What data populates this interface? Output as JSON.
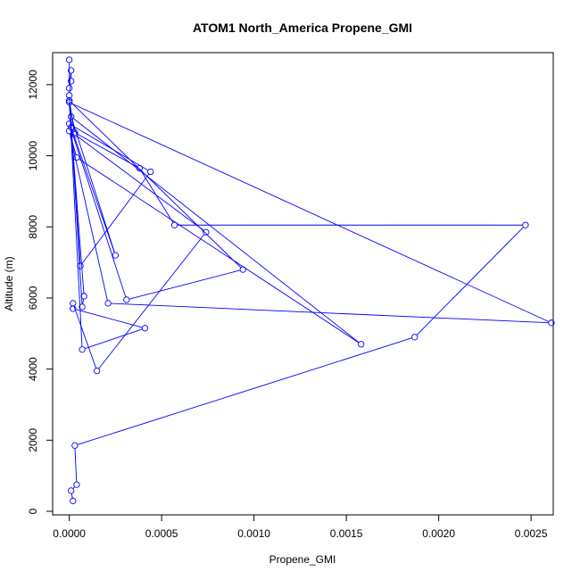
{
  "chart_data": {
    "type": "line",
    "title": "ATOM1 North_America Propene_GMI",
    "xlabel": "Propene_GMI",
    "ylabel": "Altitude (m)",
    "xlim": [
      -9e-05,
      0.00262
    ],
    "ylim": [
      -100,
      12900
    ],
    "xticks": [
      0,
      0.0005,
      0.001,
      0.0015,
      0.002,
      0.0025
    ],
    "xtick_labels": [
      "0.0000",
      "0.0005",
      "0.0010",
      "0.0015",
      "0.0020",
      "0.0025"
    ],
    "yticks": [
      0,
      2000,
      4000,
      6000,
      8000,
      10000,
      12000
    ],
    "ytick_labels": [
      "0",
      "2000",
      "4000",
      "6000",
      "8000",
      "10000",
      "12000"
    ],
    "grid": false,
    "series": [
      {
        "color": "#0000ff",
        "marker": "open-circle",
        "x": [
          2e-05,
          1e-05,
          4e-05,
          3e-05,
          0.00187,
          0.00247,
          0.00057,
          0.00038,
          3e-05,
          0.0,
          7e-05,
          0.00041,
          2e-05,
          2e-05,
          0.00015,
          0.00074,
          3e-05,
          0.0,
          0.00094,
          0.00031,
          0.0,
          0.00044,
          6e-05,
          1e-05,
          0.00025,
          1e-05,
          0.00158,
          4e-05,
          0.0,
          0.00021,
          0.00261,
          0.0,
          8e-05,
          7e-05,
          0.0,
          1e-05,
          1e-05,
          0.0,
          0.0
        ],
        "y": [
          290,
          580,
          750,
          1850,
          4900,
          8050,
          8050,
          9650,
          10650,
          11550,
          4550,
          5150,
          5700,
          5850,
          3950,
          7850,
          10600,
          11550,
          6800,
          5950,
          10900,
          9550,
          6900,
          10800,
          7200,
          11100,
          4700,
          9950,
          10700,
          5850,
          5300,
          11500,
          6050,
          5750,
          11700,
          12100,
          12400,
          11900,
          12700
        ]
      }
    ]
  }
}
